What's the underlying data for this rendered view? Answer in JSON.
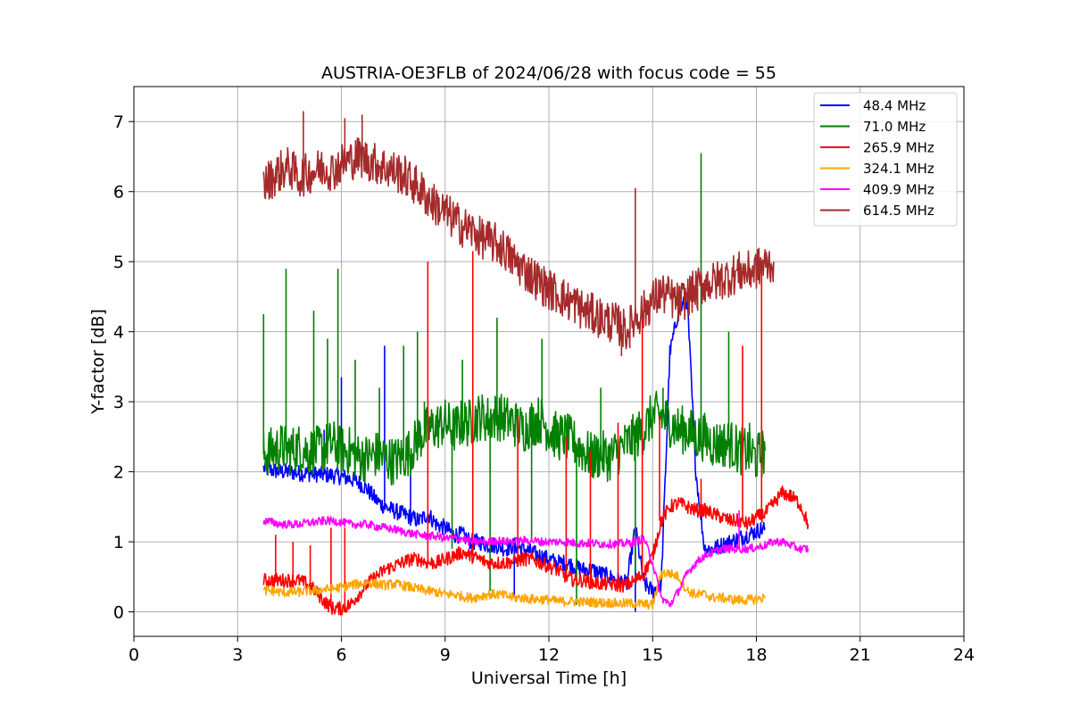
{
  "chart_data": {
    "type": "line",
    "title": "AUSTRIA-OE3FLB of 2024/06/28 with focus code = 55",
    "xlabel": "Universal Time [h]",
    "ylabel": "Y-factor [dB]",
    "xlim": [
      0,
      24
    ],
    "ylim": [
      -0.35,
      7.5
    ],
    "xticks": [
      0,
      3,
      6,
      9,
      12,
      15,
      18,
      21,
      24
    ],
    "yticks": [
      0,
      1,
      2,
      3,
      4,
      5,
      6,
      7
    ],
    "grid": true,
    "legend_position": "top-right",
    "x_step": 0.25,
    "series": [
      {
        "name": " 48.4 MHz",
        "color": "#0000ff",
        "x_start": 3.75,
        "values": [
          2.05,
          2.02,
          2.0,
          2.0,
          1.98,
          1.98,
          1.97,
          1.96,
          1.95,
          1.93,
          1.9,
          1.85,
          1.75,
          1.6,
          1.5,
          1.45,
          1.4,
          1.35,
          1.3,
          1.4,
          1.25,
          1.2,
          1.1,
          1.1,
          1.0,
          1.0,
          0.95,
          0.95,
          0.9,
          0.95,
          0.9,
          0.85,
          0.8,
          0.75,
          0.7,
          0.7,
          0.65,
          0.6,
          0.6,
          0.55,
          0.5,
          0.45,
          0.4,
          1.2,
          0.4,
          0.3,
          0.4,
          3.7,
          4.3,
          4.45,
          2.0,
          0.9,
          0.9,
          0.95,
          1.0,
          1.05,
          1.1,
          1.15,
          1.2
        ],
        "spikes": [
          [
            5.5,
            2.6
          ],
          [
            6.0,
            3.35
          ],
          [
            7.25,
            3.8
          ],
          [
            8.0,
            2.2
          ],
          [
            11.0,
            0.2
          ],
          [
            14.5,
            0.0
          ]
        ]
      },
      {
        "name": " 71.0 MHz",
        "color": "#008000",
        "x_start": 3.75,
        "values": [
          2.25,
          2.3,
          2.35,
          2.3,
          2.35,
          2.3,
          2.3,
          2.35,
          2.4,
          2.3,
          2.3,
          2.2,
          2.2,
          2.25,
          2.2,
          2.15,
          2.2,
          2.3,
          2.5,
          2.6,
          2.65,
          2.7,
          2.6,
          2.7,
          2.7,
          2.8,
          2.75,
          2.8,
          2.75,
          2.7,
          2.6,
          2.7,
          2.75,
          2.6,
          2.5,
          2.5,
          2.4,
          2.3,
          2.2,
          2.25,
          2.2,
          2.3,
          2.4,
          2.5,
          2.6,
          2.8,
          2.8,
          2.7,
          2.6,
          2.6,
          2.5,
          2.5,
          2.4,
          2.4,
          2.4,
          2.3,
          2.3,
          2.2,
          2.3
        ],
        "spikes": [
          [
            3.75,
            4.25
          ],
          [
            4.4,
            4.9
          ],
          [
            5.2,
            4.3
          ],
          [
            5.6,
            3.9
          ],
          [
            5.9,
            4.9
          ],
          [
            6.4,
            3.6
          ],
          [
            7.1,
            3.2
          ],
          [
            7.8,
            3.8
          ],
          [
            8.2,
            4.0
          ],
          [
            8.4,
            3.0
          ],
          [
            9.5,
            3.6
          ],
          [
            10.5,
            4.2
          ],
          [
            11.8,
            3.9
          ],
          [
            13.5,
            3.2
          ],
          [
            14.5,
            0.6
          ],
          [
            15.3,
            3.2
          ],
          [
            16.4,
            6.55
          ],
          [
            17.2,
            4.0
          ],
          [
            17.8,
            2.7
          ],
          [
            9.2,
            0.9
          ],
          [
            10.3,
            0.3
          ],
          [
            11.5,
            1.0
          ],
          [
            12.8,
            0.1
          ]
        ]
      },
      {
        "name": " 265.9 MHz",
        "color": "#ff0000",
        "x_start": 3.75,
        "values": [
          0.45,
          0.45,
          0.45,
          0.45,
          0.45,
          0.4,
          0.3,
          0.15,
          0.05,
          0.05,
          0.1,
          0.25,
          0.4,
          0.5,
          0.6,
          0.65,
          0.7,
          0.75,
          0.75,
          0.7,
          0.7,
          0.75,
          0.8,
          0.85,
          0.8,
          0.75,
          0.7,
          0.7,
          0.7,
          0.72,
          0.75,
          0.75,
          0.7,
          0.65,
          0.6,
          0.5,
          0.45,
          0.45,
          0.42,
          0.4,
          0.4,
          0.38,
          0.38,
          0.45,
          0.55,
          0.8,
          1.3,
          1.5,
          1.55,
          1.5,
          1.45,
          1.45,
          1.4,
          1.35,
          1.3,
          1.3,
          1.25,
          1.35,
          1.4,
          1.55,
          1.7,
          1.65,
          1.55,
          1.25
        ],
        "spikes": [
          [
            4.1,
            1.1
          ],
          [
            4.6,
            1.0
          ],
          [
            5.1,
            0.95
          ],
          [
            5.7,
            1.2
          ],
          [
            6.1,
            1.2
          ],
          [
            8.5,
            5.0
          ],
          [
            9.8,
            5.15
          ],
          [
            11.1,
            2.8
          ],
          [
            12.5,
            2.5
          ],
          [
            13.2,
            2.3
          ],
          [
            14.0,
            2.7
          ],
          [
            14.7,
            4.3
          ],
          [
            15.2,
            2.8
          ],
          [
            16.4,
            1.9
          ],
          [
            17.6,
            3.8
          ],
          [
            18.15,
            4.9
          ]
        ]
      },
      {
        "name": " 324.1 MHz",
        "color": "#ffa500",
        "x_start": 3.75,
        "values": [
          0.3,
          0.3,
          0.28,
          0.28,
          0.28,
          0.3,
          0.3,
          0.32,
          0.33,
          0.35,
          0.38,
          0.4,
          0.42,
          0.4,
          0.38,
          0.4,
          0.38,
          0.35,
          0.32,
          0.3,
          0.28,
          0.25,
          0.25,
          0.22,
          0.2,
          0.22,
          0.25,
          0.25,
          0.23,
          0.2,
          0.2,
          0.18,
          0.18,
          0.17,
          0.15,
          0.15,
          0.15,
          0.14,
          0.14,
          0.13,
          0.13,
          0.12,
          0.12,
          0.12,
          0.11,
          0.1,
          0.55,
          0.55,
          0.5,
          0.3,
          0.25,
          0.25,
          0.2,
          0.2,
          0.18,
          0.17,
          0.17,
          0.18,
          0.2
        ],
        "spikes": []
      },
      {
        "name": " 409.9 MHz",
        "color": "#ff00ff",
        "x_start": 3.75,
        "values": [
          1.3,
          1.28,
          1.25,
          1.25,
          1.25,
          1.27,
          1.28,
          1.3,
          1.3,
          1.28,
          1.25,
          1.25,
          1.25,
          1.22,
          1.2,
          1.18,
          1.15,
          1.12,
          1.1,
          1.08,
          1.08,
          1.05,
          1.05,
          1.05,
          1.0,
          1.0,
          1.0,
          1.02,
          1.0,
          1.0,
          1.02,
          1.02,
          1.0,
          1.0,
          1.0,
          1.0,
          0.98,
          0.98,
          0.98,
          0.97,
          0.97,
          0.97,
          0.98,
          1.0,
          1.05,
          0.7,
          0.2,
          0.1,
          0.3,
          0.55,
          0.7,
          0.8,
          0.85,
          0.9,
          0.9,
          0.9,
          0.9,
          0.92,
          0.95,
          1.0,
          1.0,
          0.95,
          0.9,
          0.9
        ],
        "spikes": [
          [
            17.5,
            1.45
          ]
        ]
      },
      {
        "name": " 614.5 MHz",
        "color": "#a52a2a",
        "x_start": 3.75,
        "values": [
          6.1,
          6.2,
          6.3,
          6.35,
          6.2,
          6.25,
          6.3,
          6.35,
          6.3,
          6.4,
          6.45,
          6.5,
          6.45,
          6.4,
          6.35,
          6.3,
          6.25,
          6.15,
          6.05,
          5.9,
          5.8,
          5.7,
          5.6,
          5.5,
          5.45,
          5.35,
          5.3,
          5.25,
          5.15,
          5.0,
          4.9,
          4.8,
          4.7,
          4.6,
          4.55,
          4.45,
          4.4,
          4.3,
          4.25,
          4.2,
          4.15,
          4.1,
          4.0,
          4.2,
          4.3,
          4.45,
          4.55,
          4.5,
          4.4,
          4.5,
          4.6,
          4.7,
          4.7,
          4.75,
          4.8,
          4.85,
          4.85,
          4.9,
          4.95,
          5.0
        ],
        "spikes": [
          [
            4.9,
            7.15
          ],
          [
            6.1,
            7.05
          ],
          [
            6.6,
            7.1
          ],
          [
            14.1,
            3.65
          ],
          [
            14.5,
            6.05
          ],
          [
            16.3,
            4.3
          ]
        ]
      }
    ]
  }
}
